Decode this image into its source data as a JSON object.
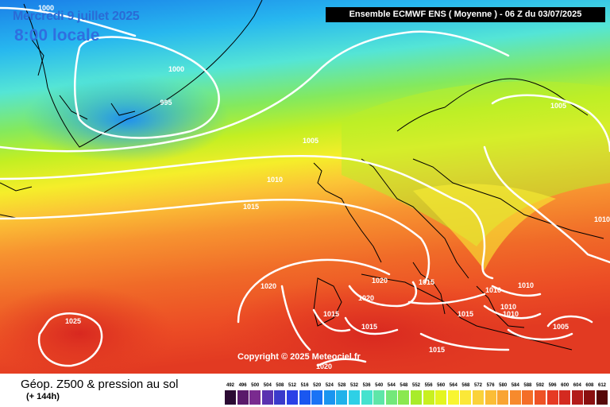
{
  "title": {
    "date": "Mercredi 9 juillet 2025",
    "time": "8:00 locale"
  },
  "header": "Ensemble ECMWF ENS  ( Moyenne )  -  06 Z du 03/07/2025",
  "copyright": "Copyright © 2025 Meteociel.fr",
  "caption": {
    "main": "Géop. Z500 & pression au sol",
    "lead": "(+ 144h)"
  },
  "legend": {
    "levels": [
      "492",
      "496",
      "500",
      "504",
      "508",
      "512",
      "516",
      "520",
      "524",
      "528",
      "532",
      "536",
      "540",
      "544",
      "548",
      "552",
      "556",
      "560",
      "564",
      "568",
      "572",
      "576",
      "580",
      "584",
      "588",
      "592",
      "596",
      "600",
      "604",
      "608",
      "612"
    ],
    "colors": [
      "#2b0a33",
      "#5a1a6a",
      "#7a2b8f",
      "#5a32b0",
      "#3a3acb",
      "#2a40e6",
      "#1a57f0",
      "#1a73f5",
      "#1a95f0",
      "#20b2ea",
      "#2ed0e6",
      "#45e2ce",
      "#5ee6a8",
      "#73e87a",
      "#8ae850",
      "#a8ec2a",
      "#c8f020",
      "#e4f520",
      "#f8f530",
      "#fbe838",
      "#fad23a",
      "#fbbd36",
      "#f9a432",
      "#f78a2c",
      "#f46e28",
      "#ee5226",
      "#e63a24",
      "#d42a20",
      "#b31c1a",
      "#8a1010",
      "#560808"
    ]
  },
  "isobars": [
    {
      "label": "1000"
    },
    {
      "label": "1000"
    },
    {
      "label": "995"
    },
    {
      "label": "1005"
    },
    {
      "label": "1010"
    },
    {
      "label": "1015"
    },
    {
      "label": "1005"
    },
    {
      "label": "1020"
    },
    {
      "label": "1020"
    },
    {
      "label": "1015"
    },
    {
      "label": "1020"
    },
    {
      "label": "1010"
    },
    {
      "label": "1010"
    },
    {
      "label": "1010"
    },
    {
      "label": "1010"
    },
    {
      "label": "1015"
    },
    {
      "label": "1015"
    },
    {
      "label": "1015"
    },
    {
      "label": "1025"
    },
    {
      "label": "1005"
    },
    {
      "label": "1015"
    },
    {
      "label": "1020"
    },
    {
      "label": "1010"
    }
  ]
}
